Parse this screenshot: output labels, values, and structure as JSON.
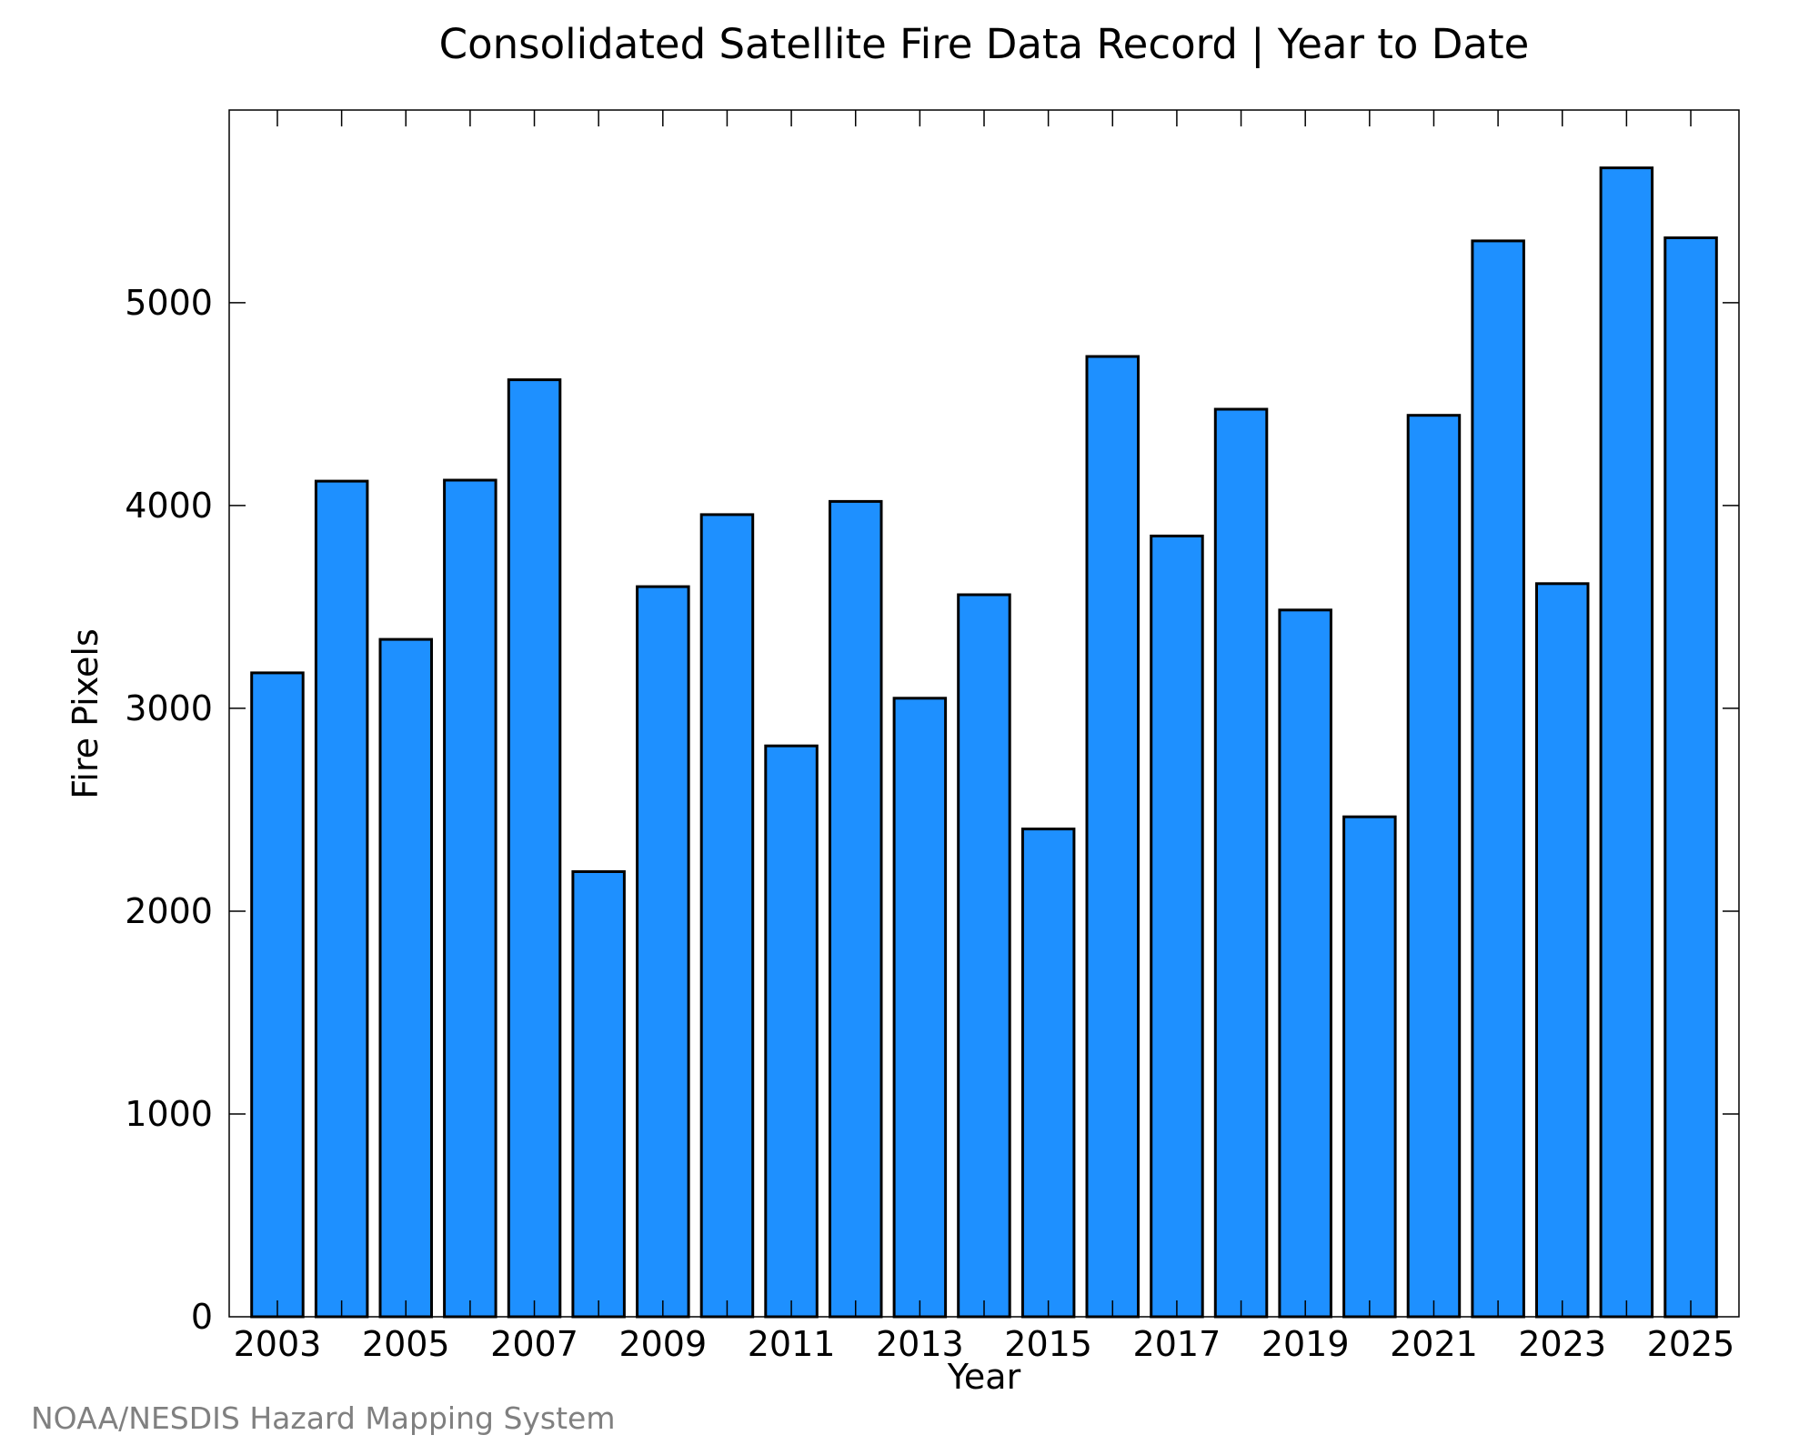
{
  "chart_data": {
    "type": "bar",
    "title": "Consolidated Satellite Fire Data Record | Year to Date",
    "xlabel": "Year",
    "ylabel": "Fire Pixels",
    "categories": [
      "2003",
      "2004",
      "2005",
      "2006",
      "2007",
      "2008",
      "2009",
      "2010",
      "2011",
      "2012",
      "2013",
      "2014",
      "2015",
      "2016",
      "2017",
      "2018",
      "2019",
      "2020",
      "2021",
      "2022",
      "2023",
      "2024",
      "2025"
    ],
    "values": [
      3175,
      4120,
      3340,
      4125,
      4620,
      2195,
      3600,
      3955,
      2815,
      4020,
      3050,
      3560,
      2405,
      4735,
      3850,
      4475,
      3485,
      2465,
      4445,
      5305,
      3615,
      5665,
      5320
    ],
    "x_tick_labels": [
      "2003",
      "2005",
      "2007",
      "2009",
      "2011",
      "2013",
      "2015",
      "2017",
      "2019",
      "2021",
      "2023",
      "2025"
    ],
    "y_ticks": [
      0,
      1000,
      2000,
      3000,
      4000,
      5000
    ],
    "ylim": [
      0,
      5950
    ],
    "grid": false,
    "legend": "none",
    "bar_color": "#1e90ff",
    "edge_color": "#000000"
  },
  "credit": "NOAA/NESDIS Hazard Mapping System"
}
